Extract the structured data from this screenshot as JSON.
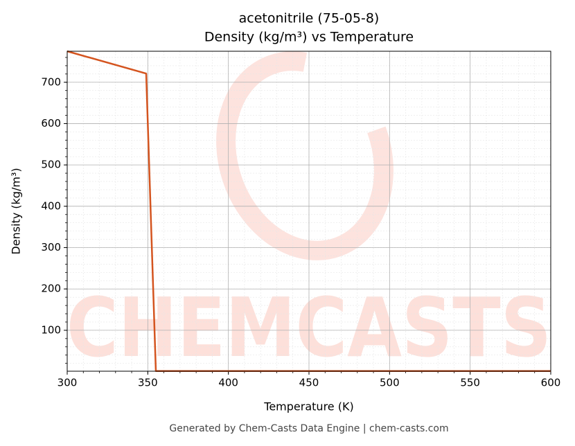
{
  "chart_data": {
    "type": "line",
    "title": "acetonitrile (75-05-8)",
    "subtitle": "Density (kg/m³) vs Temperature",
    "x_label": "Temperature (K)",
    "y_label": "Density (kg/m³)",
    "footer": "Generated by Chem-Casts Data Engine | chem-casts.com",
    "watermark": "CHEMCASTS",
    "x": [
      300,
      349,
      355,
      600
    ],
    "series": [
      {
        "name": "Density",
        "color": "#d4541f",
        "values": [
          775,
          721,
          1.5,
          1.5
        ]
      }
    ],
    "xlim": [
      300,
      600
    ],
    "ylim": [
      1,
      775
    ],
    "xticks": [
      300,
      350,
      400,
      450,
      500,
      550,
      600
    ],
    "yticks": [
      100,
      200,
      300,
      400,
      500,
      600,
      700
    ],
    "x_minor_ticks": [
      300,
      310,
      320,
      330,
      340,
      350,
      360,
      370,
      380,
      390,
      400,
      410,
      420,
      430,
      440,
      450,
      460,
      470,
      480,
      490,
      500,
      510,
      520,
      530,
      540,
      550,
      560,
      570,
      580,
      590,
      600
    ],
    "y_minor_ticks": [
      20,
      40,
      60,
      80,
      100,
      120,
      140,
      160,
      180,
      200,
      220,
      240,
      260,
      280,
      300,
      320,
      340,
      360,
      380,
      400,
      420,
      440,
      460,
      480,
      500,
      520,
      540,
      560,
      580,
      600,
      620,
      640,
      660,
      680,
      700,
      720,
      740,
      760
    ],
    "grid": true
  }
}
